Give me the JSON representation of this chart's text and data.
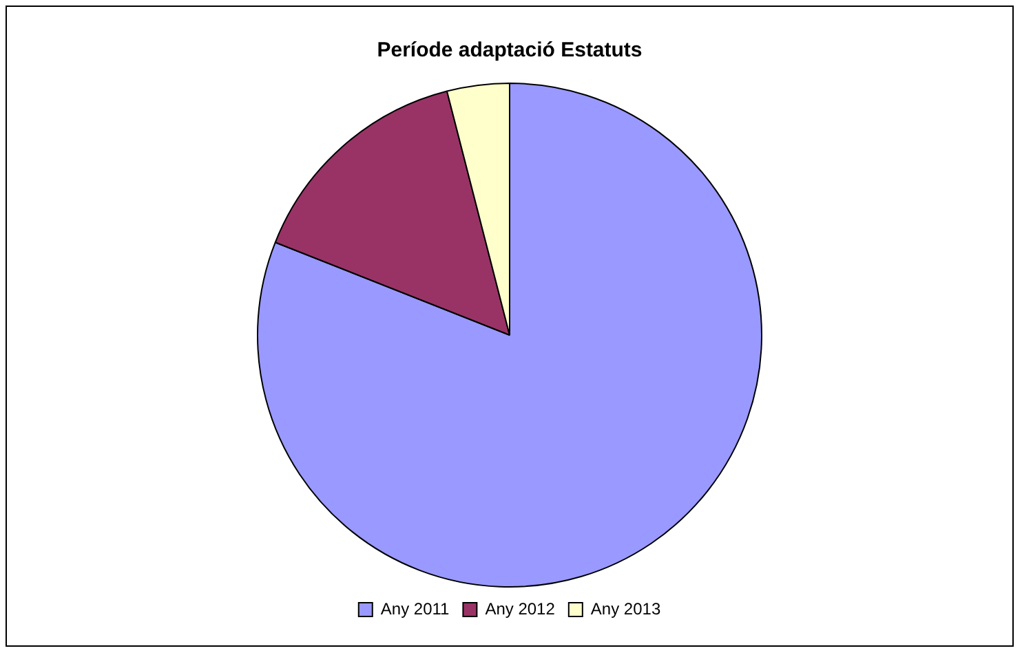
{
  "chart_data": {
    "type": "pie",
    "title": "Període adaptació Estatuts",
    "categories": [
      "Any 2011",
      "Any 2012",
      "Any 2013"
    ],
    "values": [
      81,
      15,
      4
    ],
    "colors": [
      "#9999ff",
      "#993366",
      "#ffffcc"
    ],
    "legend": "bottom"
  }
}
